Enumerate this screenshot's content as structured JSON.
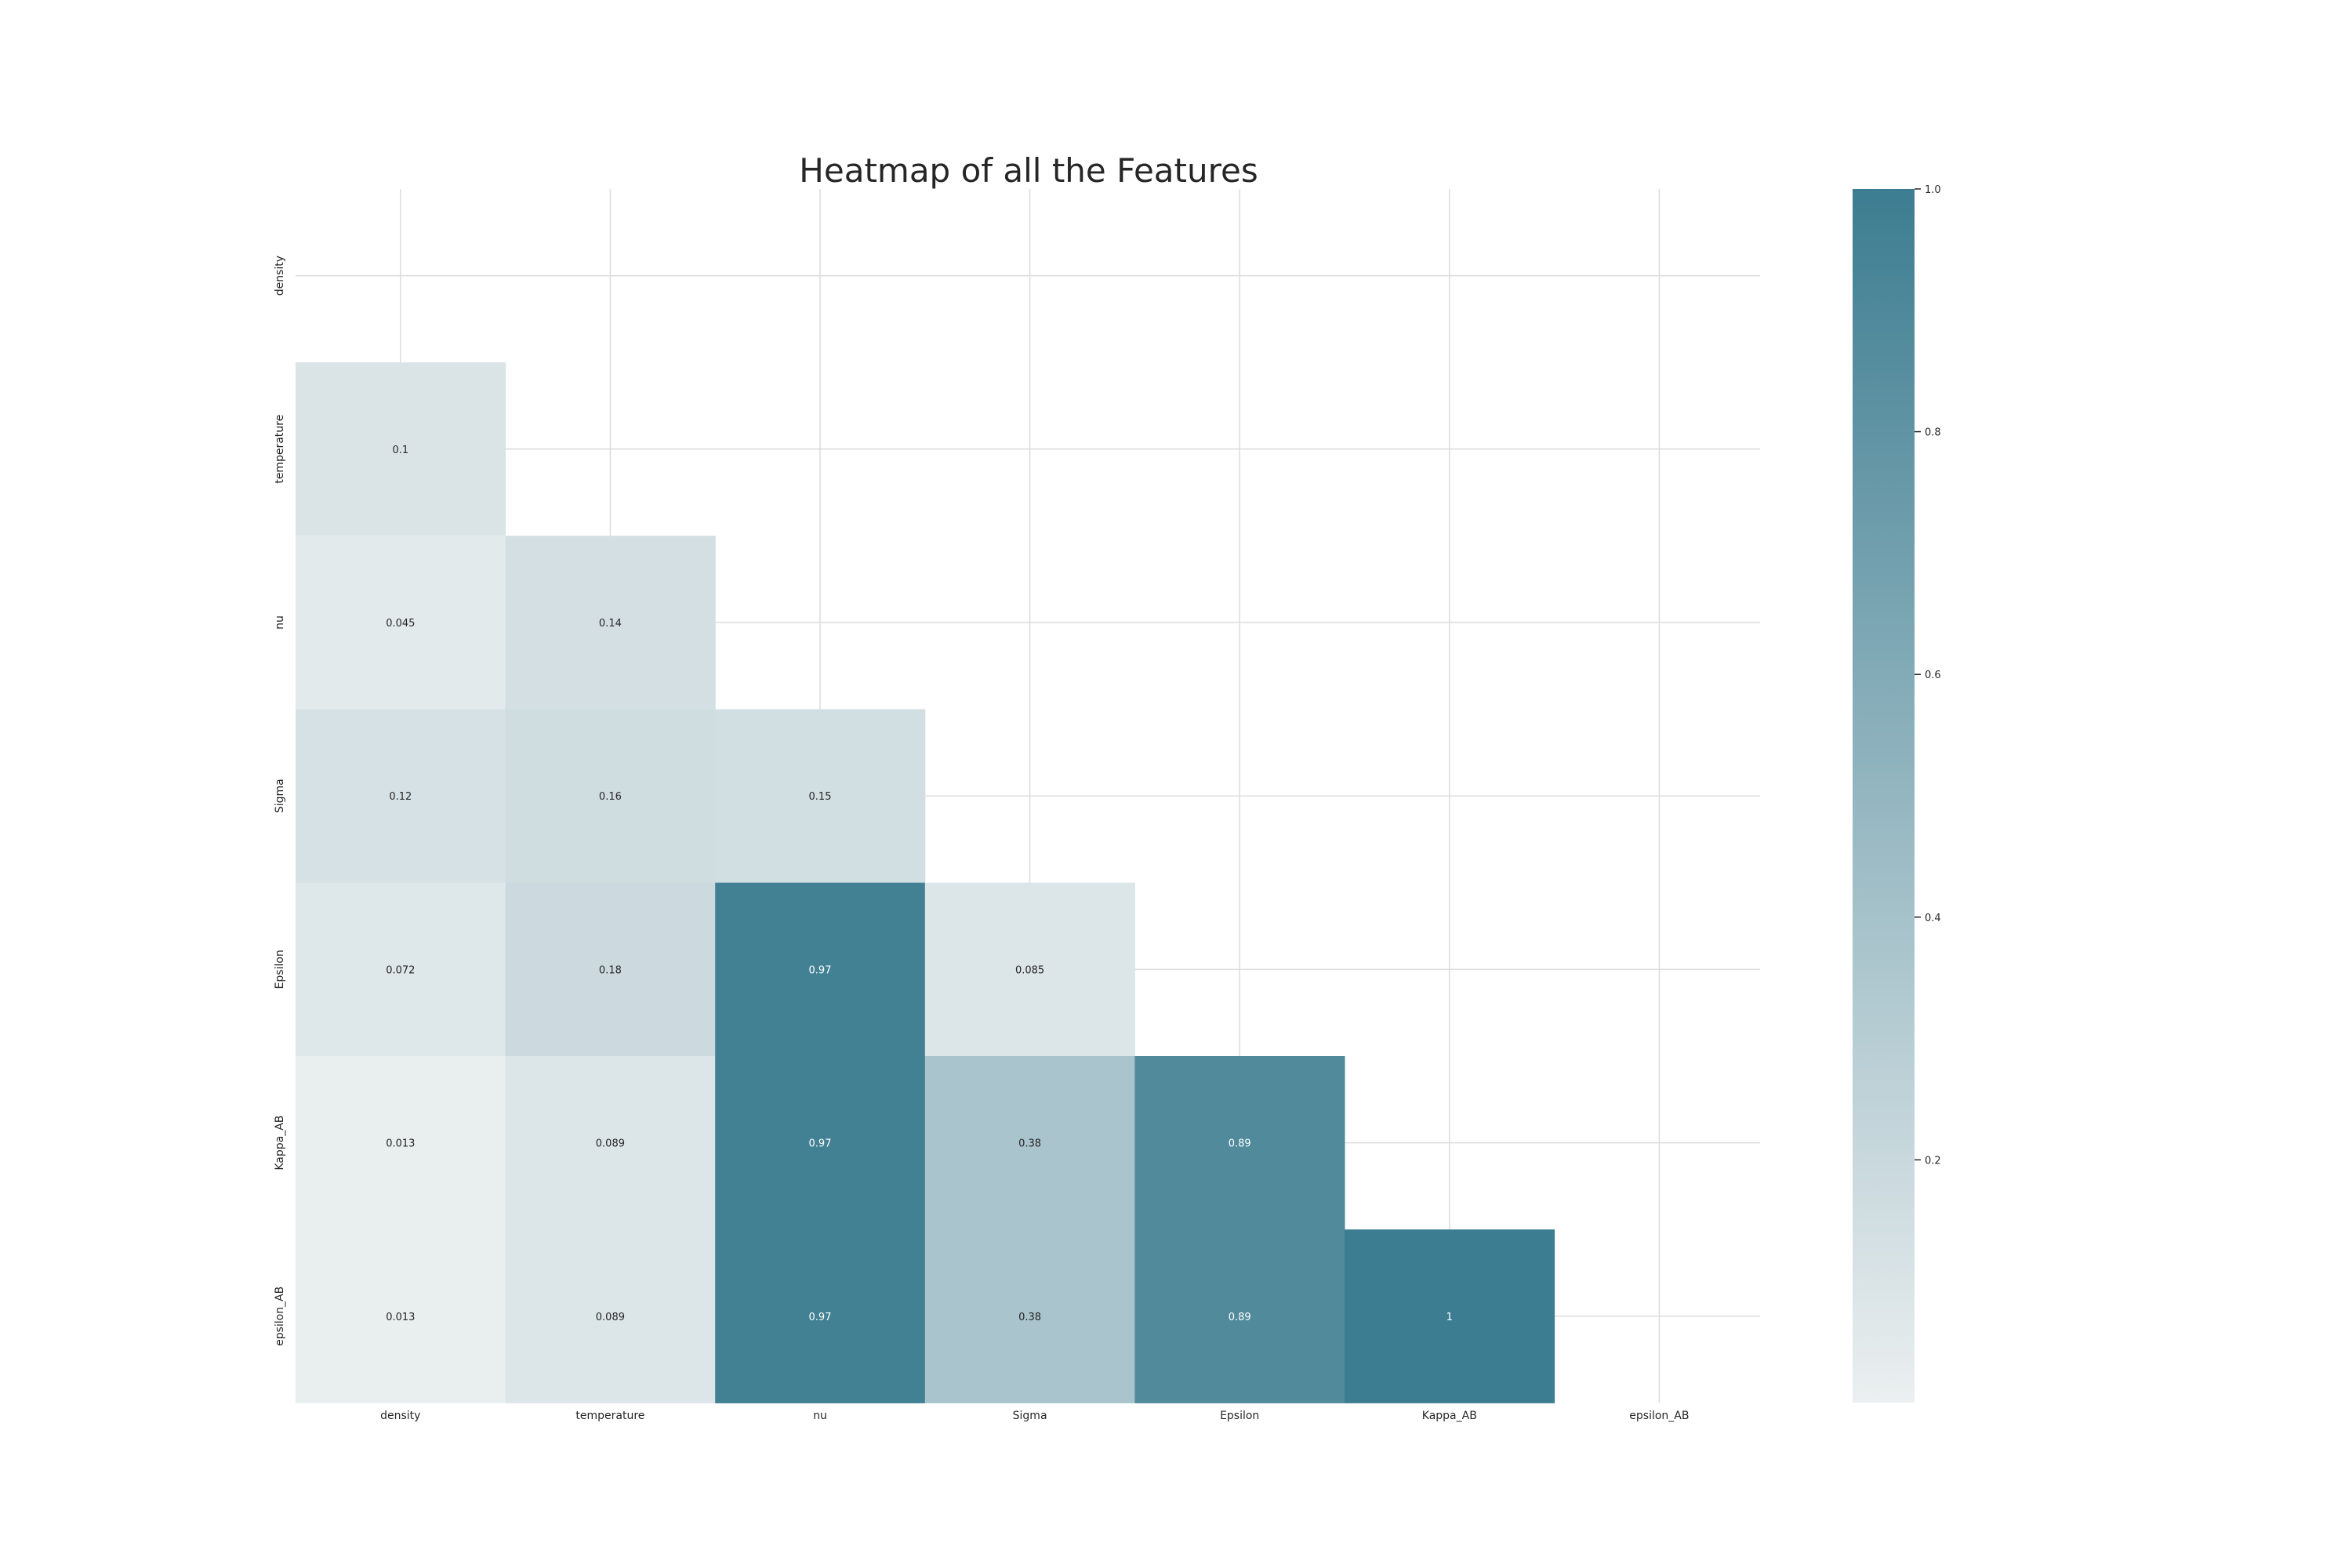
{
  "chart_data": {
    "type": "heatmap",
    "title": "Heatmap of all the Features",
    "variables": [
      "density",
      "temperature",
      "nu",
      "Sigma",
      "Epsilon",
      "Kappa_AB",
      "epsilon_AB"
    ],
    "rows": [
      {
        "label": "density",
        "values": []
      },
      {
        "label": "temperature",
        "values": [
          0.1
        ]
      },
      {
        "label": "nu",
        "values": [
          0.045,
          0.14
        ]
      },
      {
        "label": "Sigma",
        "values": [
          0.12,
          0.16,
          0.15
        ]
      },
      {
        "label": "Epsilon",
        "values": [
          0.072,
          0.18,
          0.97,
          0.085
        ]
      },
      {
        "label": "Kappa_AB",
        "values": [
          0.013,
          0.089,
          0.97,
          0.38,
          0.89
        ]
      },
      {
        "label": "epsilon_AB",
        "values": [
          0.013,
          0.089,
          0.97,
          0.38,
          0.89,
          1
        ]
      }
    ],
    "annotations": [
      [
        "",
        "",
        "",
        "",
        "",
        "",
        ""
      ],
      [
        "0.1",
        "",
        "",
        "",
        "",
        "",
        ""
      ],
      [
        "0.045",
        "0.14",
        "",
        "",
        "",
        "",
        ""
      ],
      [
        "0.12",
        "0.16",
        "0.15",
        "",
        "",
        "",
        ""
      ],
      [
        "0.072",
        "0.18",
        "0.97",
        "0.085",
        "",
        "",
        ""
      ],
      [
        "0.013",
        "0.089",
        "0.97",
        "0.38",
        "0.89",
        "",
        ""
      ],
      [
        "0.013",
        "0.089",
        "0.97",
        "0.38",
        "0.89",
        "1",
        ""
      ]
    ],
    "mask": "upper triangle incl. diagonal",
    "colorbar": {
      "min": 0,
      "max": 1.0,
      "ticks": [
        "0.2",
        "0.4",
        "0.6",
        "0.8",
        "1.0"
      ],
      "tick_values": [
        0.2,
        0.4,
        0.6,
        0.8,
        1.0
      ],
      "low_color": "#ebeff0",
      "high_color": "#3d7d91"
    },
    "grid": true,
    "legend": "colorbar right"
  }
}
